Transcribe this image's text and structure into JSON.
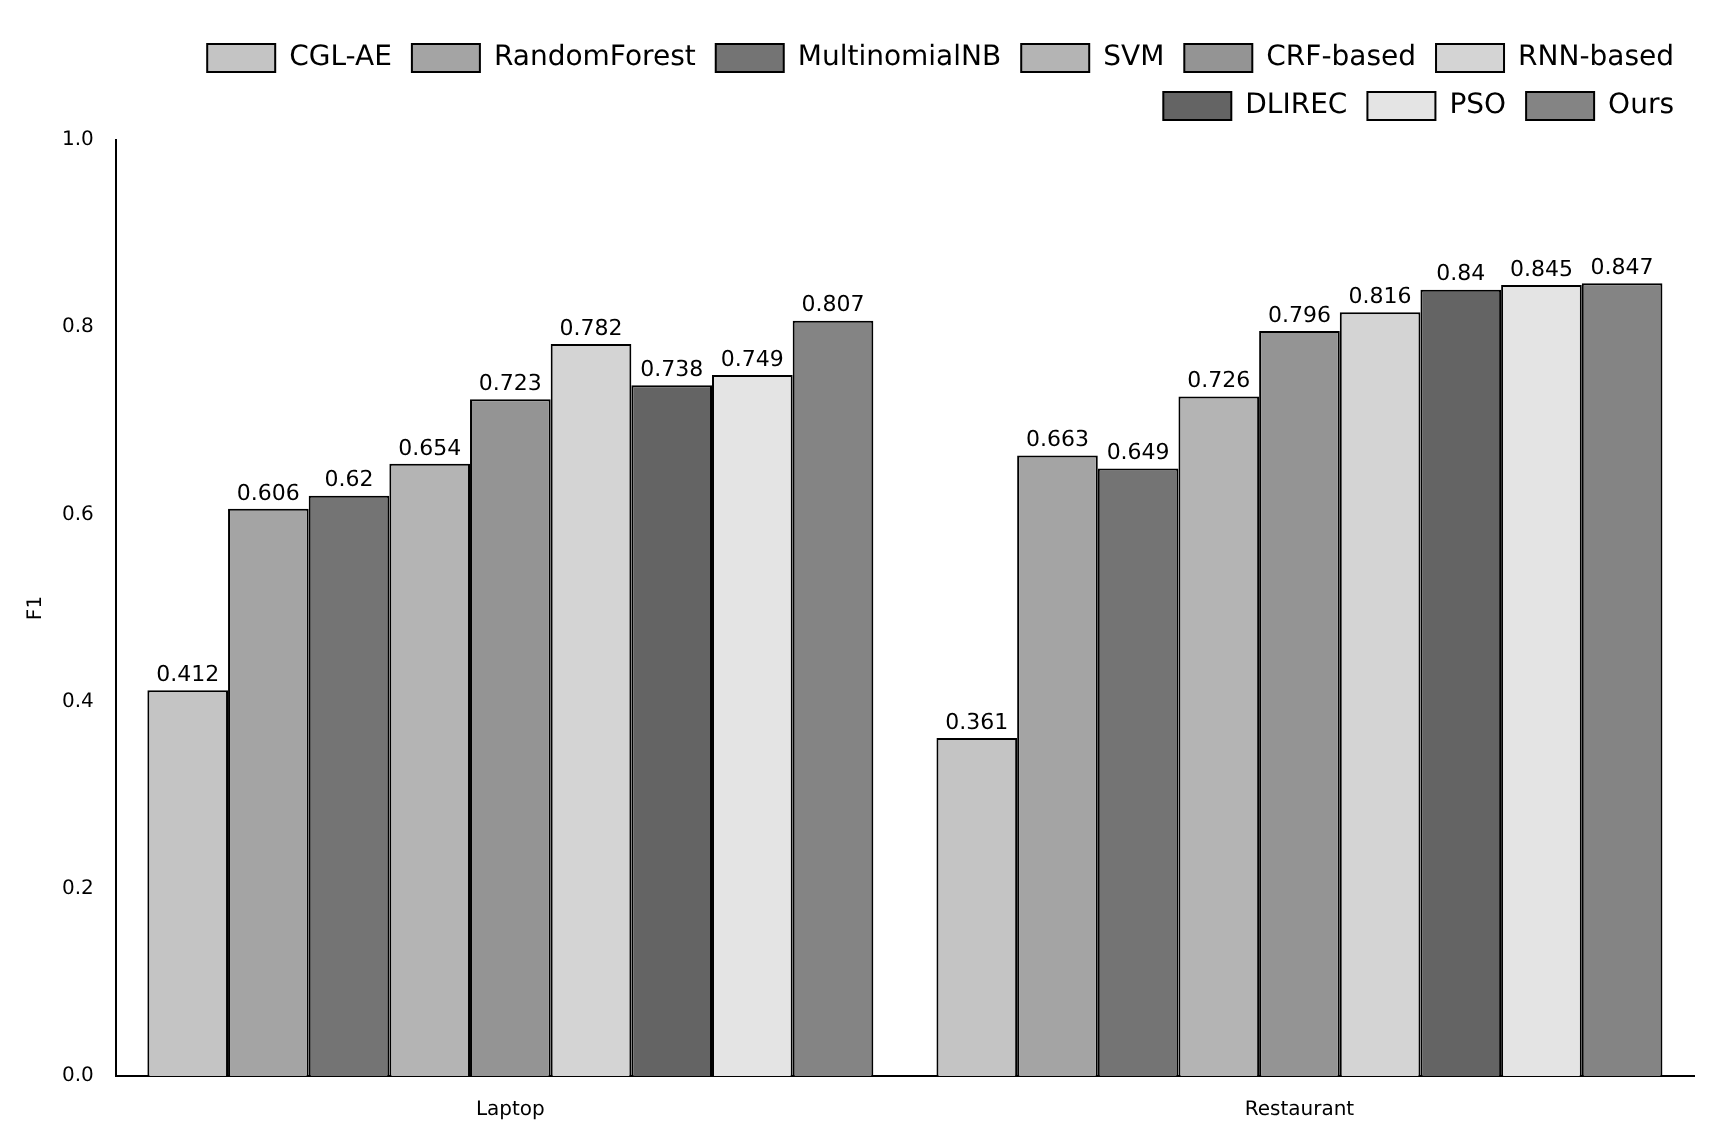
{
  "chart_data": {
    "type": "bar",
    "ylabel": "F1",
    "categories": [
      "Laptop",
      "Restaurant"
    ],
    "series": [
      {
        "name": "CGL-AE",
        "color": "#c4c4c4",
        "values": [
          0.412,
          0.361
        ]
      },
      {
        "name": "RandomForest",
        "color": "#a4a4a4",
        "values": [
          0.606,
          0.663
        ]
      },
      {
        "name": "MultinomialNB",
        "color": "#747474",
        "values": [
          0.62,
          0.649
        ]
      },
      {
        "name": "SVM",
        "color": "#b4b4b4",
        "values": [
          0.654,
          0.726
        ]
      },
      {
        "name": "CRF-based",
        "color": "#949494",
        "values": [
          0.723,
          0.796
        ]
      },
      {
        "name": "RNN-based",
        "color": "#d4d4d4",
        "values": [
          0.782,
          0.816
        ]
      },
      {
        "name": "DLIREC",
        "color": "#646464",
        "values": [
          0.738,
          0.84
        ]
      },
      {
        "name": "PSO",
        "color": "#e4e4e4",
        "values": [
          0.749,
          0.845
        ]
      },
      {
        "name": "Ours",
        "color": "#848484",
        "values": [
          0.807,
          0.847
        ]
      }
    ],
    "ylim": [
      0,
      1
    ],
    "yticks": [
      {
        "value": 0,
        "label": "0.0"
      },
      {
        "value": 0.2,
        "label": "0.2"
      },
      {
        "value": 0.4,
        "label": "0.4"
      },
      {
        "value": 0.6,
        "label": "0.6"
      },
      {
        "value": 0.8,
        "label": "0.8"
      },
      {
        "value": 1,
        "label": "1.0"
      }
    ],
    "grid": false,
    "legend": "top right",
    "data_labels": true
  }
}
